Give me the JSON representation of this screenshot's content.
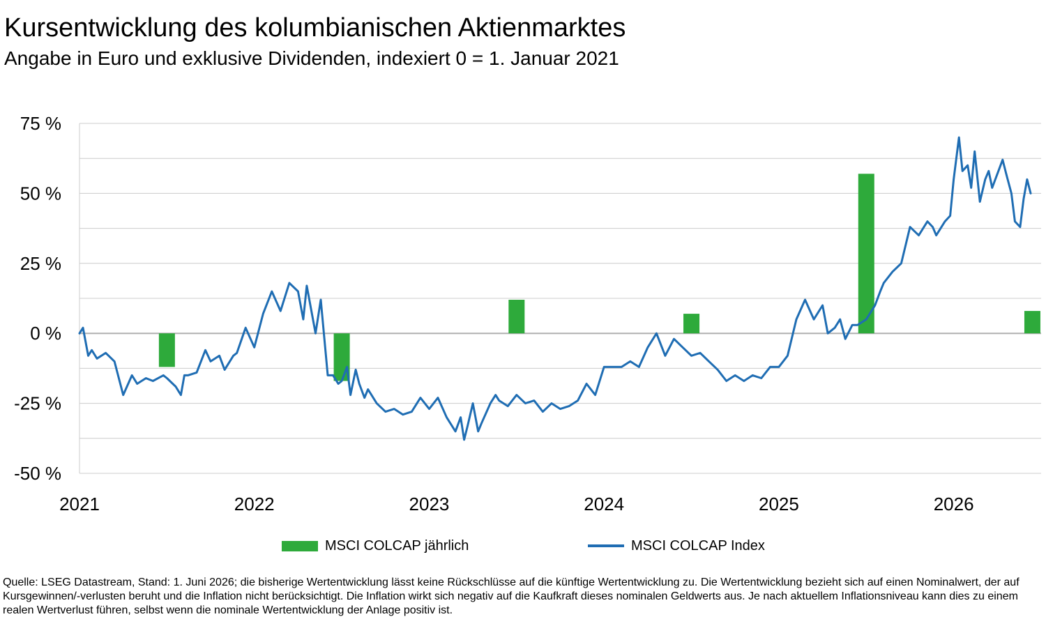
{
  "header": {
    "title": "Kursentwicklung des kolumbianischen Aktienmarktes",
    "subtitle": "Angabe in Euro und exklusive Dividenden, indexiert 0 = 1. Januar 2021"
  },
  "legend": {
    "bar_label": "MSCI COLCAP jährlich",
    "line_label": "MSCI COLCAP Index"
  },
  "footnote": "Quelle: LSEG Datastream, Stand: 1. Juni 2026; die bisherige Wertentwicklung lässt keine Rückschlüsse auf die künftige Wertentwicklung zu. Die Wertentwicklung bezieht sich auf einen Nominalwert, der auf Kursgewinnen/-verlusten beruht und die Inflation nicht berücksichtigt. Die Inflation wirkt sich negativ auf die Kaufkraft dieses nominalen Geldwerts aus. Je nach aktuellem Inflationsniveau kann dies zu einem realen Wertverlust führen, selbst wenn die nominale Wertentwicklung der Anlage positiv ist.",
  "colors": {
    "bar": "#2eaa3b",
    "line": "#1f6db3",
    "grid": "#cccccc",
    "zero_line": "#b0b0b0"
  },
  "chart_data": {
    "type": "bar+line",
    "ylim": [
      -50,
      75
    ],
    "yticks": [
      75,
      50,
      25,
      0,
      -25,
      -50
    ],
    "ytick_labels": [
      "75 %",
      "50 %",
      "25 %",
      "0 %",
      "-25 %",
      "-50 %"
    ],
    "xlim": [
      2021.0,
      2026.5
    ],
    "xticks": [
      2021,
      2022,
      2023,
      2024,
      2025,
      2026
    ],
    "xtick_labels": [
      "2021",
      "2022",
      "2023",
      "2024",
      "2025",
      "2026"
    ],
    "grid": true,
    "legend_position": "bottom",
    "series": [
      {
        "name": "MSCI COLCAP jährlich",
        "type": "bar",
        "x": [
          2021.5,
          2022.5,
          2023.5,
          2024.5,
          2025.5,
          2026.45
        ],
        "values": [
          -12,
          -17,
          12,
          7,
          57,
          8
        ]
      },
      {
        "name": "MSCI COLCAP Index",
        "type": "line",
        "x": [
          2021.0,
          2021.02,
          2021.05,
          2021.07,
          2021.1,
          2021.15,
          2021.2,
          2021.25,
          2021.3,
          2021.33,
          2021.38,
          2021.42,
          2021.48,
          2021.5,
          2021.55,
          2021.58,
          2021.6,
          2021.62,
          2021.67,
          2021.72,
          2021.75,
          2021.8,
          2021.83,
          2021.88,
          2021.9,
          2021.95,
          2022.0,
          2022.05,
          2022.1,
          2022.15,
          2022.2,
          2022.25,
          2022.28,
          2022.3,
          2022.35,
          2022.38,
          2022.42,
          2022.45,
          2022.48,
          2022.5,
          2022.53,
          2022.55,
          2022.58,
          2022.6,
          2022.63,
          2022.65,
          2022.7,
          2022.75,
          2022.8,
          2022.85,
          2022.9,
          2022.95,
          2023.0,
          2023.05,
          2023.1,
          2023.15,
          2023.18,
          2023.2,
          2023.22,
          2023.25,
          2023.28,
          2023.3,
          2023.35,
          2023.38,
          2023.4,
          2023.45,
          2023.5,
          2023.55,
          2023.6,
          2023.65,
          2023.7,
          2023.75,
          2023.8,
          2023.85,
          2023.9,
          2023.95,
          2024.0,
          2024.05,
          2024.1,
          2024.15,
          2024.2,
          2024.25,
          2024.3,
          2024.35,
          2024.4,
          2024.45,
          2024.5,
          2024.55,
          2024.6,
          2024.65,
          2024.7,
          2024.75,
          2024.8,
          2024.85,
          2024.9,
          2024.95,
          2025.0,
          2025.05,
          2025.1,
          2025.15,
          2025.2,
          2025.25,
          2025.28,
          2025.32,
          2025.35,
          2025.38,
          2025.42,
          2025.45,
          2025.5,
          2025.55,
          2025.58,
          2025.6,
          2025.65,
          2025.7,
          2025.75,
          2025.8,
          2025.85,
          2025.88,
          2025.9,
          2025.95,
          2025.98,
          2026.0,
          2026.03,
          2026.05,
          2026.08,
          2026.1,
          2026.12,
          2026.15,
          2026.18,
          2026.2,
          2026.22,
          2026.25,
          2026.28,
          2026.3,
          2026.33,
          2026.35,
          2026.38,
          2026.4,
          2026.42,
          2026.44
        ],
        "values": [
          0,
          2,
          -8,
          -6,
          -9,
          -7,
          -10,
          -22,
          -15,
          -18,
          -16,
          -17,
          -15,
          -16,
          -19,
          -22,
          -15,
          -15,
          -14,
          -6,
          -10,
          -8,
          -13,
          -8,
          -7,
          2,
          -5,
          7,
          15,
          8,
          18,
          15,
          5,
          17,
          0,
          12,
          -15,
          -15,
          -18,
          -17,
          -12,
          -22,
          -13,
          -18,
          -23,
          -20,
          -25,
          -28,
          -27,
          -29,
          -28,
          -23,
          -27,
          -23,
          -30,
          -35,
          -30,
          -38,
          -33,
          -25,
          -35,
          -32,
          -25,
          -22,
          -24,
          -26,
          -22,
          -25,
          -24,
          -28,
          -25,
          -27,
          -26,
          -24,
          -18,
          -22,
          -12,
          -12,
          -12,
          -10,
          -12,
          -5,
          0,
          -8,
          -2,
          -5,
          -8,
          -7,
          -10,
          -13,
          -17,
          -15,
          -17,
          -15,
          -16,
          -12,
          -12,
          -8,
          5,
          12,
          5,
          10,
          0,
          2,
          5,
          -2,
          3,
          3,
          5,
          10,
          15,
          18,
          22,
          25,
          38,
          35,
          40,
          38,
          35,
          40,
          42,
          55,
          70,
          58,
          60,
          52,
          65,
          47,
          55,
          58,
          52,
          57,
          62,
          57,
          50,
          40,
          38,
          48,
          55,
          50
        ]
      }
    ]
  }
}
